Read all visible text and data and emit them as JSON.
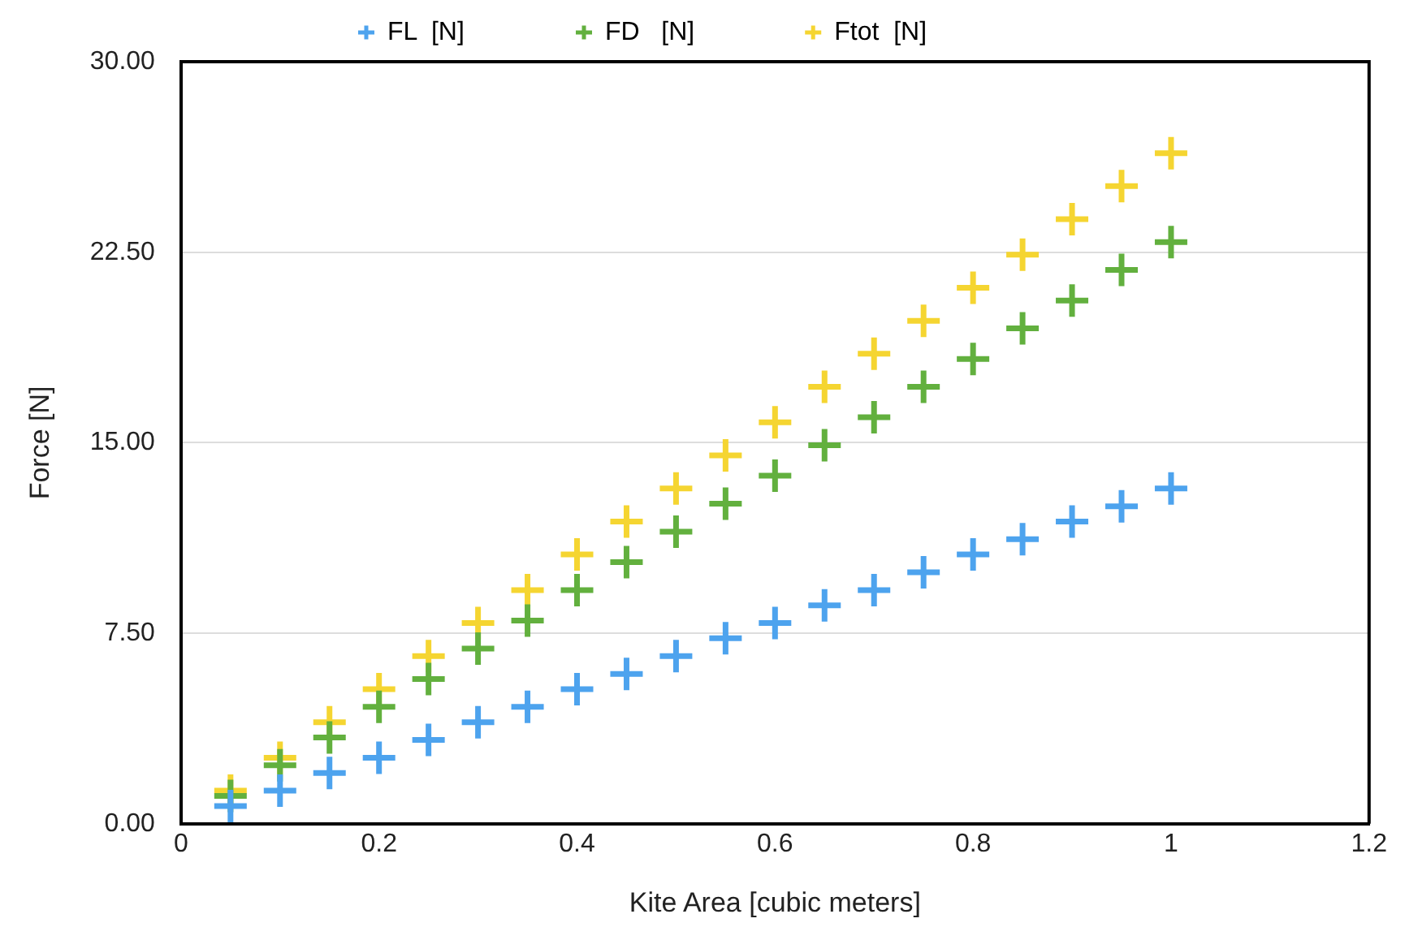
{
  "chart_data": {
    "type": "scatter",
    "xlabel": "Kite Area [cubic meters]",
    "ylabel": "Force [N]",
    "x": [
      0.05,
      0.1,
      0.15,
      0.2,
      0.25,
      0.3,
      0.35,
      0.4,
      0.45,
      0.5,
      0.55,
      0.6,
      0.65,
      0.7,
      0.75,
      0.8,
      0.85,
      0.9,
      0.95,
      1
    ],
    "series": [
      {
        "name": "FL  [N]",
        "color": "#4da3ee",
        "values": [
          0.7,
          1.3,
          2.0,
          2.6,
          3.3,
          4.0,
          4.6,
          5.3,
          5.9,
          6.6,
          7.3,
          7.9,
          8.6,
          9.2,
          9.9,
          10.6,
          11.2,
          11.9,
          12.5,
          13.2
        ]
      },
      {
        "name": "FD   [N]",
        "color": "#62b03e",
        "values": [
          1.1,
          2.3,
          3.4,
          4.6,
          5.7,
          6.9,
          8.0,
          9.2,
          10.3,
          11.5,
          12.6,
          13.7,
          14.9,
          16.0,
          17.2,
          18.3,
          19.5,
          20.6,
          21.8,
          22.9
        ]
      },
      {
        "name": "Ftot  [N]",
        "color": "#f5d531",
        "values": [
          1.3,
          2.6,
          4.0,
          5.3,
          6.6,
          7.9,
          9.2,
          10.6,
          11.9,
          13.2,
          14.5,
          15.8,
          17.2,
          18.5,
          19.8,
          21.1,
          22.4,
          23.8,
          25.1,
          26.4
        ]
      }
    ],
    "xlim": [
      0,
      1.2
    ],
    "xticks": [
      0,
      0.2,
      0.4,
      0.6,
      0.8,
      1,
      1.2
    ],
    "ylim": [
      0,
      30
    ],
    "yticks": [
      {
        "value": 0,
        "label": "0.00"
      },
      {
        "value": 7.5,
        "label": "7.50"
      },
      {
        "value": 15,
        "label": "15.00"
      },
      {
        "value": 22.5,
        "label": "22.50"
      },
      {
        "value": 30,
        "label": "30.00"
      }
    ],
    "grid": "y",
    "legend": "top",
    "marker": "cross"
  }
}
